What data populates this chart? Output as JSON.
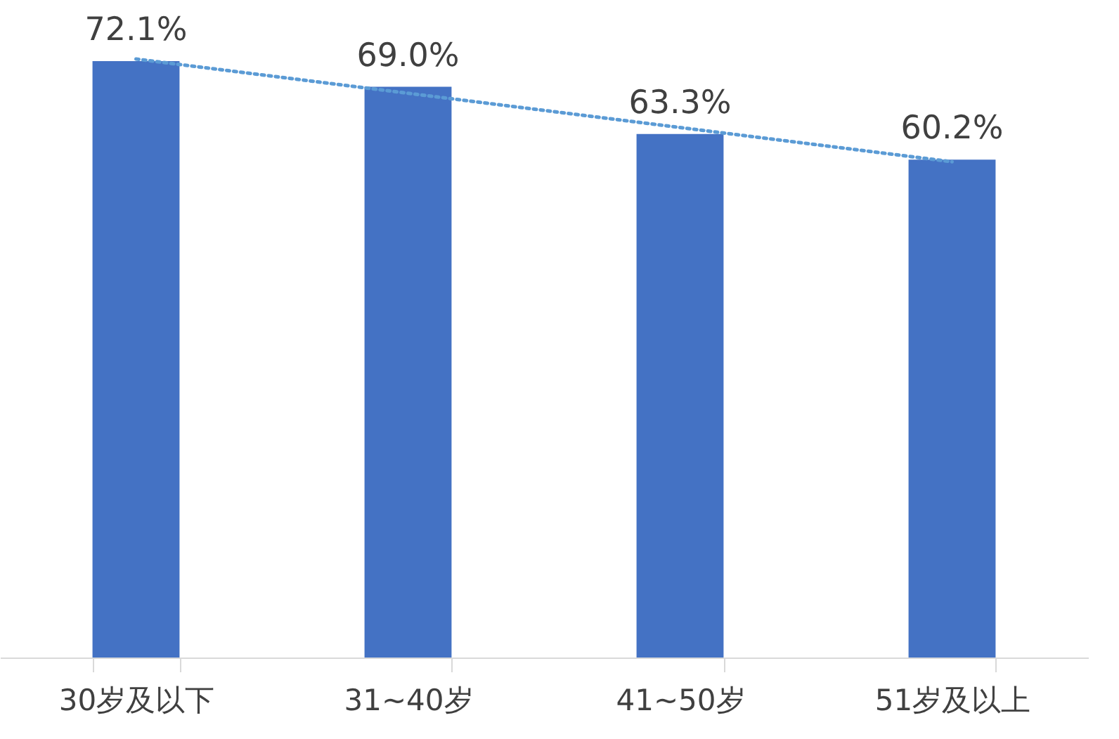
{
  "chart_data": {
    "type": "bar",
    "categories": [
      "30岁及以下",
      "31~40岁",
      "41~50岁",
      "51岁及以上"
    ],
    "grid": false,
    "series": [
      {
        "color": "#4472c4",
        "values": [
          72.1,
          69.0,
          63.3,
          60.2
        ],
        "value_labels": [
          "72.1%",
          "69.0%",
          "63.3%",
          "60.2%"
        ]
      },
      {
        "type": "line",
        "color": "#5b9bd5",
        "line_style": "dotted",
        "marker": "none",
        "x": [
          "30岁及以下",
          "31~40岁",
          "41~50岁",
          "51岁及以上"
        ],
        "values": [
          72.36,
          68.22,
          64.08,
          59.94
        ]
      }
    ]
  }
}
